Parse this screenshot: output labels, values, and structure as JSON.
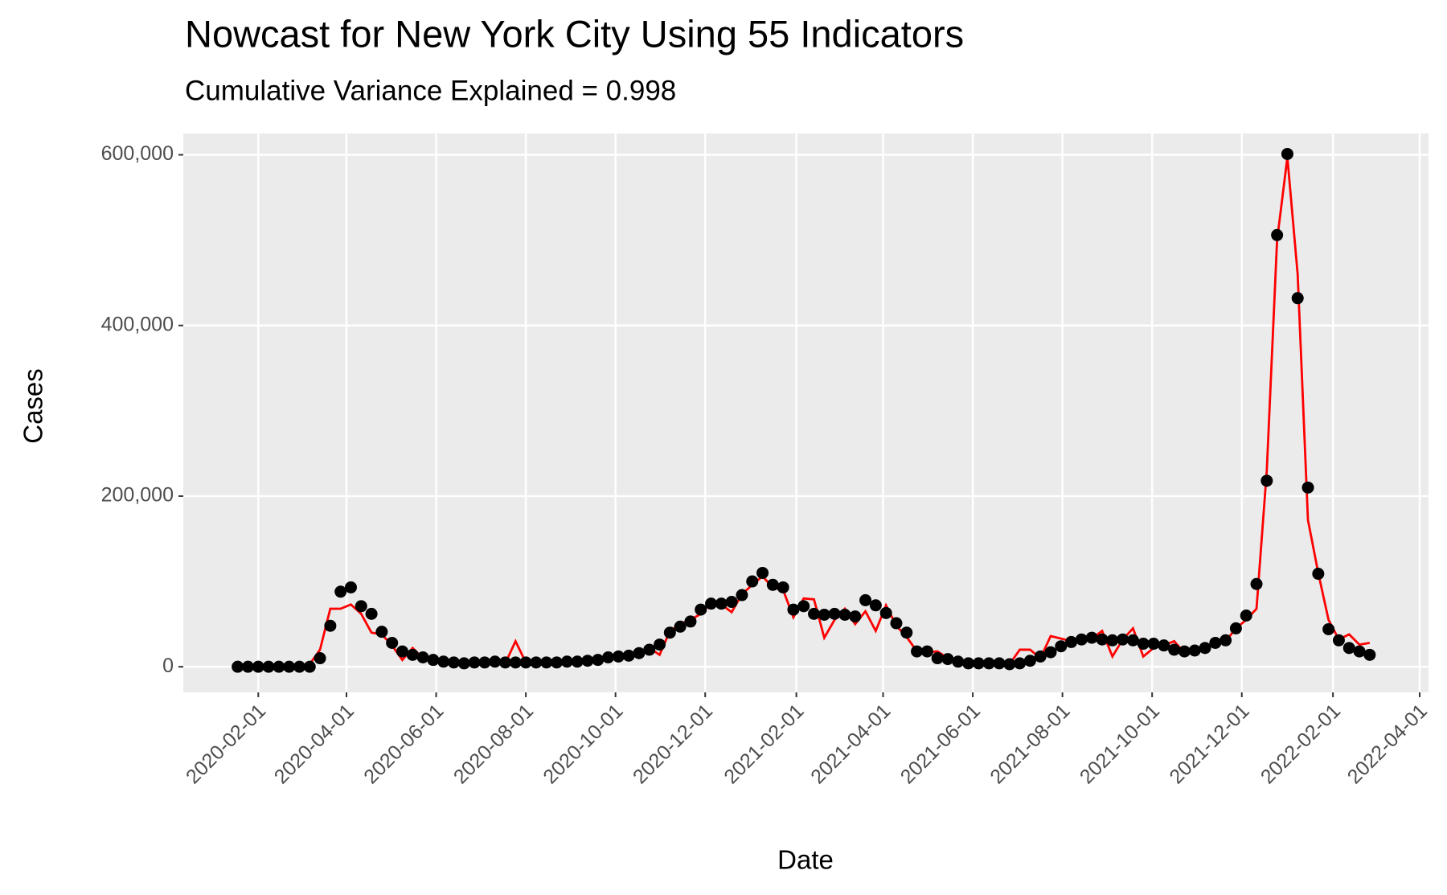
{
  "chart_data": {
    "type": "line",
    "title": "Nowcast for New York City Using 55 Indicators",
    "subtitle": "Cumulative Variance Explained = 0.998",
    "x_label": "Date",
    "y_label": "Cases",
    "x": [
      "2020-01-18",
      "2020-01-25",
      "2020-02-01",
      "2020-02-08",
      "2020-02-15",
      "2020-02-22",
      "2020-02-29",
      "2020-03-07",
      "2020-03-14",
      "2020-03-21",
      "2020-03-28",
      "2020-04-04",
      "2020-04-11",
      "2020-04-18",
      "2020-04-25",
      "2020-05-02",
      "2020-05-09",
      "2020-05-16",
      "2020-05-23",
      "2020-05-30",
      "2020-06-06",
      "2020-06-13",
      "2020-06-20",
      "2020-06-27",
      "2020-07-04",
      "2020-07-11",
      "2020-07-18",
      "2020-07-25",
      "2020-08-01",
      "2020-08-08",
      "2020-08-15",
      "2020-08-22",
      "2020-08-29",
      "2020-09-05",
      "2020-09-12",
      "2020-09-19",
      "2020-09-26",
      "2020-10-03",
      "2020-10-10",
      "2020-10-17",
      "2020-10-24",
      "2020-10-31",
      "2020-11-07",
      "2020-11-14",
      "2020-11-21",
      "2020-11-28",
      "2020-12-05",
      "2020-12-12",
      "2020-12-19",
      "2020-12-26",
      "2021-01-02",
      "2021-01-09",
      "2021-01-16",
      "2021-01-23",
      "2021-01-30",
      "2021-02-06",
      "2021-02-13",
      "2021-02-20",
      "2021-02-27",
      "2021-03-06",
      "2021-03-13",
      "2021-03-20",
      "2021-03-27",
      "2021-04-03",
      "2021-04-10",
      "2021-04-17",
      "2021-04-24",
      "2021-05-01",
      "2021-05-08",
      "2021-05-15",
      "2021-05-22",
      "2021-05-29",
      "2021-06-05",
      "2021-06-12",
      "2021-06-19",
      "2021-06-26",
      "2021-07-03",
      "2021-07-10",
      "2021-07-17",
      "2021-07-24",
      "2021-07-31",
      "2021-08-07",
      "2021-08-14",
      "2021-08-21",
      "2021-08-28",
      "2021-09-04",
      "2021-09-11",
      "2021-09-18",
      "2021-09-25",
      "2021-10-02",
      "2021-10-09",
      "2021-10-16",
      "2021-10-23",
      "2021-10-30",
      "2021-11-06",
      "2021-11-13",
      "2021-11-20",
      "2021-11-27",
      "2021-12-04",
      "2021-12-11",
      "2021-12-18",
      "2021-12-25",
      "2022-01-01",
      "2022-01-08",
      "2022-01-15",
      "2022-01-22",
      "2022-01-29",
      "2022-02-05",
      "2022-02-12",
      "2022-02-19",
      "2022-02-26"
    ],
    "series": [
      {
        "mode": "line",
        "color": "#ff0000",
        "values": [
          0,
          0,
          0,
          0,
          0,
          0,
          0,
          3000,
          20000,
          68000,
          68000,
          73000,
          62000,
          40000,
          38000,
          25000,
          8000,
          22000,
          10000,
          6000,
          5000,
          5000,
          4000,
          4000,
          5000,
          6000,
          4000,
          30000,
          5000,
          4000,
          5000,
          5000,
          6000,
          5000,
          9000,
          8000,
          12000,
          13000,
          12000,
          17000,
          22000,
          14000,
          42000,
          50000,
          55000,
          62000,
          75000,
          73000,
          64000,
          85000,
          96000,
          106000,
          93000,
          90000,
          58000,
          80000,
          79000,
          34000,
          55000,
          68000,
          50000,
          65000,
          42000,
          72000,
          48000,
          35000,
          18000,
          17000,
          18000,
          10000,
          8000,
          3000,
          3000,
          5000,
          3000,
          3000,
          20000,
          20000,
          10000,
          36000,
          33000,
          30000,
          33000,
          33000,
          42000,
          12000,
          32000,
          45000,
          12000,
          22000,
          25000,
          30000,
          16000,
          15000,
          22000,
          25000,
          30000,
          45000,
          55000,
          68000,
          230000,
          500000,
          597000,
          460000,
          172000,
          110000,
          55000,
          32000,
          38000,
          26000,
          28000
        ]
      },
      {
        "mode": "points",
        "color": "#000000",
        "values": [
          0,
          0,
          0,
          0,
          0,
          0,
          0,
          0,
          10000,
          48000,
          88000,
          93000,
          71000,
          62000,
          41000,
          28000,
          18000,
          14000,
          11000,
          8000,
          6000,
          5000,
          4000,
          5000,
          5000,
          6000,
          5000,
          5000,
          5000,
          5000,
          5000,
          5000,
          6000,
          6000,
          7000,
          8000,
          11000,
          12000,
          13000,
          16000,
          20000,
          26000,
          40000,
          47000,
          53000,
          67000,
          74000,
          74000,
          76000,
          84000,
          100000,
          110000,
          96000,
          93000,
          67000,
          71000,
          62000,
          61000,
          62000,
          61000,
          59000,
          78000,
          72000,
          63000,
          51000,
          40000,
          18000,
          18000,
          10000,
          9000,
          6000,
          4000,
          4000,
          4000,
          4000,
          3000,
          4000,
          7000,
          12000,
          17000,
          24000,
          29000,
          32000,
          34000,
          32000,
          31000,
          32000,
          31000,
          27000,
          27000,
          25000,
          20000,
          18000,
          19000,
          22000,
          28000,
          31000,
          45000,
          60000,
          97000,
          218000,
          506000,
          601000,
          432000,
          210000,
          109000,
          44000,
          31000,
          22000,
          18000,
          14000
        ]
      }
    ],
    "xlim": [
      "2019-12-12",
      "2022-04-07"
    ],
    "xticks": [
      "2020-02-01",
      "2020-04-01",
      "2020-06-01",
      "2020-08-01",
      "2020-10-01",
      "2020-12-01",
      "2021-02-01",
      "2021-04-01",
      "2021-06-01",
      "2021-08-01",
      "2021-10-01",
      "2021-12-01",
      "2022-02-01",
      "2022-04-01"
    ],
    "ylim": [
      -30000,
      625000
    ],
    "yticks": [
      {
        "value": 0,
        "label": "0"
      },
      {
        "value": 200000,
        "label": "200,000"
      },
      {
        "value": 400000,
        "label": "400,000"
      },
      {
        "value": 600000,
        "label": "600,000"
      }
    ],
    "grid": true,
    "panel_color": "#ebebeb"
  }
}
